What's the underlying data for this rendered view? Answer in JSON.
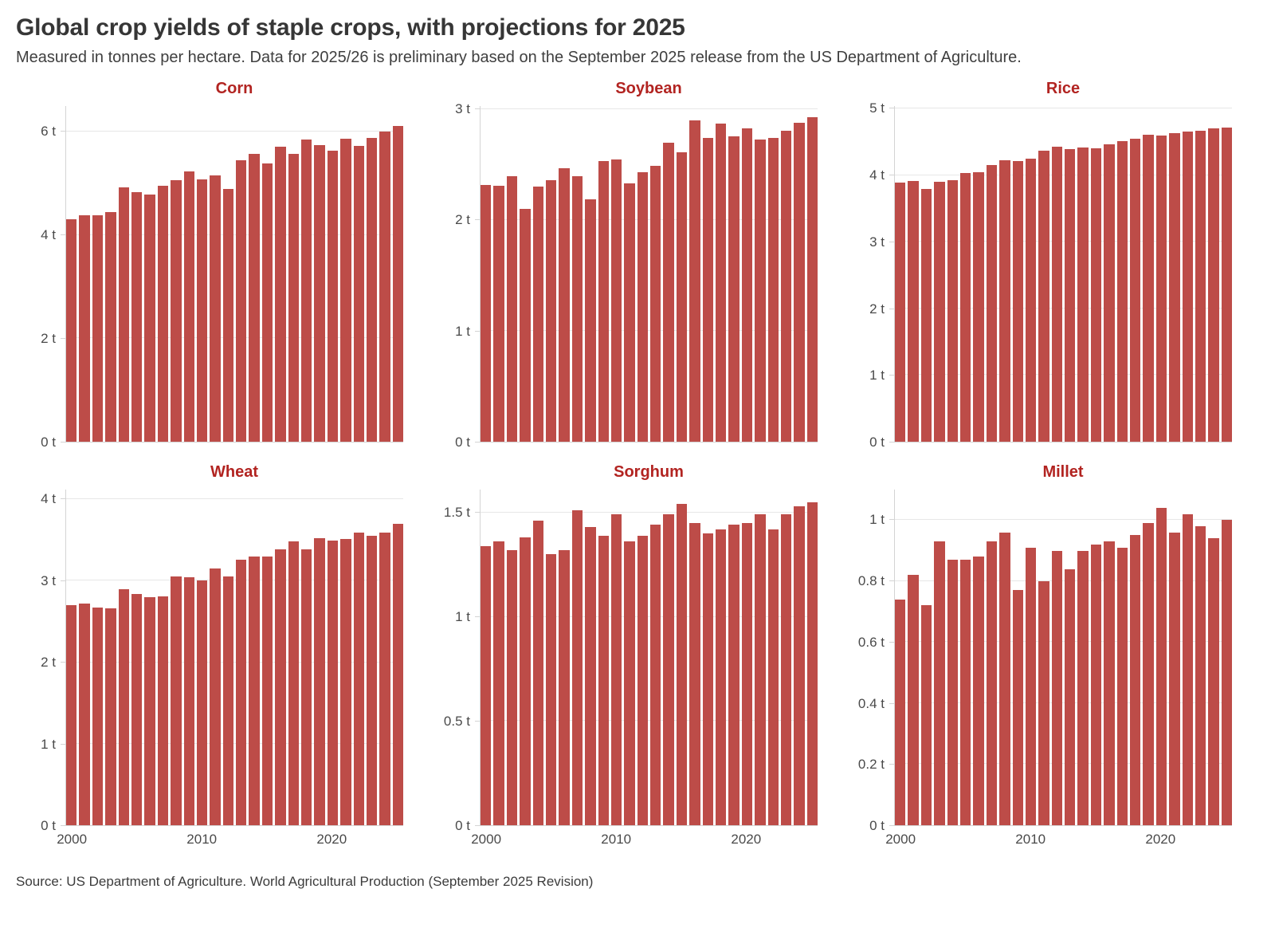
{
  "header": {
    "title": "Global crop yields of staple crops, with projections for 2025",
    "subtitle": "Measured in tonnes per hectare. Data for 2025/26 is preliminary based on the September 2025 release from the US Department of Agriculture."
  },
  "footer": {
    "source": "Source: US Department of Agriculture. World Agricultural Production (September 2025 Revision)"
  },
  "colors": {
    "bar": "#bd4c48",
    "chart_title": "#b22421",
    "grid": "#e7e7e7",
    "axis_line": "#d4d4d4",
    "axis_text": "#4a4a4a",
    "text": "#363636"
  },
  "unit_suffix": " t",
  "chart_data": [
    {
      "type": "bar",
      "title": "Corn",
      "ylabel": "tonnes per hectare",
      "x": [
        2000,
        2001,
        2002,
        2003,
        2004,
        2005,
        2006,
        2007,
        2008,
        2009,
        2010,
        2011,
        2012,
        2013,
        2014,
        2015,
        2016,
        2017,
        2018,
        2019,
        2020,
        2021,
        2022,
        2023,
        2024,
        2025
      ],
      "values": [
        4.31,
        4.39,
        4.38,
        4.44,
        4.93,
        4.83,
        4.78,
        4.96,
        5.06,
        5.24,
        5.08,
        5.16,
        4.89,
        5.45,
        5.58,
        5.39,
        5.71,
        5.57,
        5.85,
        5.75,
        5.63,
        5.86,
        5.73,
        5.88,
        6.0,
        6.12
      ],
      "yticks": [
        0,
        2,
        4,
        6
      ],
      "ylim": [
        0,
        6.5
      ],
      "x_axis_labels": [],
      "grid": true
    },
    {
      "type": "bar",
      "title": "Soybean",
      "ylabel": "tonnes per hectare",
      "x": [
        2000,
        2001,
        2002,
        2003,
        2004,
        2005,
        2006,
        2007,
        2008,
        2009,
        2010,
        2011,
        2012,
        2013,
        2014,
        2015,
        2016,
        2017,
        2018,
        2019,
        2020,
        2021,
        2022,
        2023,
        2024,
        2025
      ],
      "values": [
        2.32,
        2.31,
        2.4,
        2.1,
        2.3,
        2.36,
        2.47,
        2.4,
        2.19,
        2.53,
        2.55,
        2.33,
        2.43,
        2.49,
        2.7,
        2.61,
        2.9,
        2.74,
        2.87,
        2.76,
        2.83,
        2.73,
        2.74,
        2.81,
        2.88,
        2.93
      ],
      "yticks": [
        0,
        1,
        2,
        3
      ],
      "ylim": [
        0,
        3.03
      ],
      "x_axis_labels": [],
      "grid": true
    },
    {
      "type": "bar",
      "title": "Rice",
      "ylabel": "tonnes per hectare",
      "x": [
        2000,
        2001,
        2002,
        2003,
        2004,
        2005,
        2006,
        2007,
        2008,
        2009,
        2010,
        2011,
        2012,
        2013,
        2014,
        2015,
        2016,
        2017,
        2018,
        2019,
        2020,
        2021,
        2022,
        2023,
        2024,
        2025
      ],
      "values": [
        3.89,
        3.92,
        3.8,
        3.9,
        3.93,
        4.04,
        4.05,
        4.16,
        4.23,
        4.21,
        4.25,
        4.37,
        4.43,
        4.39,
        4.42,
        4.41,
        4.47,
        4.51,
        4.55,
        4.61,
        4.6,
        4.63,
        4.66,
        4.67,
        4.7,
        4.72
      ],
      "yticks": [
        0,
        1,
        2,
        3,
        4,
        5
      ],
      "ylim": [
        0,
        5.04
      ],
      "x_axis_labels": [],
      "grid": true
    },
    {
      "type": "bar",
      "title": "Wheat",
      "ylabel": "tonnes per hectare",
      "x": [
        2000,
        2001,
        2002,
        2003,
        2004,
        2005,
        2006,
        2007,
        2008,
        2009,
        2010,
        2011,
        2012,
        2013,
        2014,
        2015,
        2016,
        2017,
        2018,
        2019,
        2020,
        2021,
        2022,
        2023,
        2024,
        2025
      ],
      "values": [
        2.7,
        2.72,
        2.67,
        2.66,
        2.9,
        2.84,
        2.8,
        2.81,
        3.05,
        3.04,
        3.0,
        3.15,
        3.05,
        3.26,
        3.3,
        3.3,
        3.39,
        3.48,
        3.39,
        3.52,
        3.49,
        3.51,
        3.59,
        3.55,
        3.59,
        3.7
      ],
      "yticks": [
        0,
        1,
        2,
        3,
        4
      ],
      "ylim": [
        0,
        4.12
      ],
      "x_axis_labels": [
        2000,
        2010,
        2020
      ],
      "grid": true
    },
    {
      "type": "bar",
      "title": "Sorghum",
      "ylabel": "tonnes per hectare",
      "x": [
        2000,
        2001,
        2002,
        2003,
        2004,
        2005,
        2006,
        2007,
        2008,
        2009,
        2010,
        2011,
        2012,
        2013,
        2014,
        2015,
        2016,
        2017,
        2018,
        2019,
        2020,
        2021,
        2022,
        2023,
        2024,
        2025
      ],
      "values": [
        1.34,
        1.36,
        1.32,
        1.38,
        1.46,
        1.3,
        1.32,
        1.51,
        1.43,
        1.39,
        1.49,
        1.36,
        1.39,
        1.44,
        1.49,
        1.54,
        1.45,
        1.4,
        1.42,
        1.44,
        1.45,
        1.49,
        1.42,
        1.49,
        1.53,
        1.55
      ],
      "yticks": [
        0,
        0.5,
        1,
        1.5
      ],
      "ylim": [
        0,
        1.61
      ],
      "x_axis_labels": [
        2000,
        2010,
        2020
      ],
      "grid": true
    },
    {
      "type": "bar",
      "title": "Millet",
      "ylabel": "tonnes per hectare",
      "x": [
        2000,
        2001,
        2002,
        2003,
        2004,
        2005,
        2006,
        2007,
        2008,
        2009,
        2010,
        2011,
        2012,
        2013,
        2014,
        2015,
        2016,
        2017,
        2018,
        2019,
        2020,
        2021,
        2022,
        2023,
        2024,
        2025
      ],
      "values": [
        0.74,
        0.82,
        0.72,
        0.93,
        0.87,
        0.87,
        0.88,
        0.93,
        0.96,
        0.77,
        0.91,
        0.8,
        0.9,
        0.84,
        0.9,
        0.92,
        0.93,
        0.91,
        0.95,
        0.99,
        1.04,
        0.96,
        1.02,
        0.98,
        0.94,
        1.0
      ],
      "yticks": [
        0,
        0.2,
        0.4,
        0.6,
        0.8,
        1
      ],
      "ylim": [
        0,
        1.1
      ],
      "x_axis_labels": [
        2000,
        2010,
        2020
      ],
      "grid": true
    }
  ]
}
